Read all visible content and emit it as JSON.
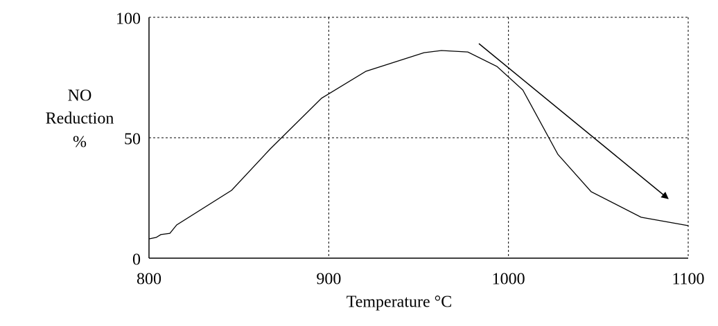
{
  "chart_data": {
    "type": "line",
    "xlabel": "Temperature °C",
    "ylabel": [
      "NO",
      "Reduction",
      "%"
    ],
    "x": [
      800,
      804,
      806.6,
      811.6,
      815.4,
      846,
      867.5,
      896,
      920.7,
      953,
      962.7,
      977.4,
      993.6,
      1008,
      1027.5,
      1046,
      1073.8,
      1100
    ],
    "series": [
      {
        "color": "#000000",
        "values": [
          8,
          8.6,
          9.8,
          10.3,
          13.8,
          28.2,
          45.4,
          66.4,
          77.6,
          85.3,
          86.2,
          85.6,
          79.6,
          69.8,
          43.1,
          27.6,
          17,
          13.5
        ]
      }
    ],
    "xlim": [
      800,
      1100
    ],
    "xticks": [
      800,
      900,
      1000,
      1100
    ],
    "ylim": [
      0,
      100
    ],
    "yticks": [
      0,
      50,
      100
    ],
    "grid": true
  }
}
